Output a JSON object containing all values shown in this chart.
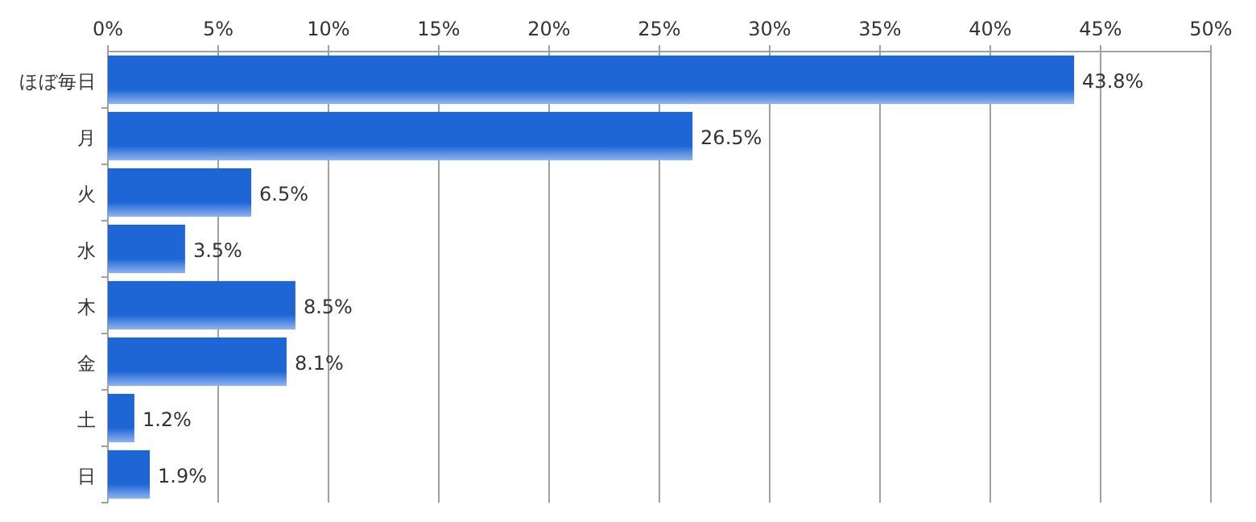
{
  "chart_data": {
    "type": "bar",
    "orientation": "horizontal",
    "categories": [
      "ほぼ毎日",
      "月",
      "火",
      "水",
      "木",
      "金",
      "土",
      "日"
    ],
    "values": [
      43.8,
      26.5,
      6.5,
      3.5,
      8.5,
      8.1,
      1.2,
      1.9
    ],
    "value_labels": [
      "43.8%",
      "26.5%",
      "6.5%",
      "3.5%",
      "8.5%",
      "8.1%",
      "1.2%",
      "1.9%"
    ],
    "color": "#1e66d6",
    "xlim": [
      0,
      50
    ],
    "xticks": [
      {
        "value": 0,
        "label": "0%"
      },
      {
        "value": 5,
        "label": "5%"
      },
      {
        "value": 10,
        "label": "10%"
      },
      {
        "value": 15,
        "label": "15%"
      },
      {
        "value": 20,
        "label": "20%"
      },
      {
        "value": 25,
        "label": "25%"
      },
      {
        "value": 30,
        "label": "30%"
      },
      {
        "value": 35,
        "label": "35%"
      },
      {
        "value": 40,
        "label": "40%"
      },
      {
        "value": 45,
        "label": "45%"
      },
      {
        "value": 50,
        "label": "50%"
      }
    ],
    "grid": "x"
  }
}
